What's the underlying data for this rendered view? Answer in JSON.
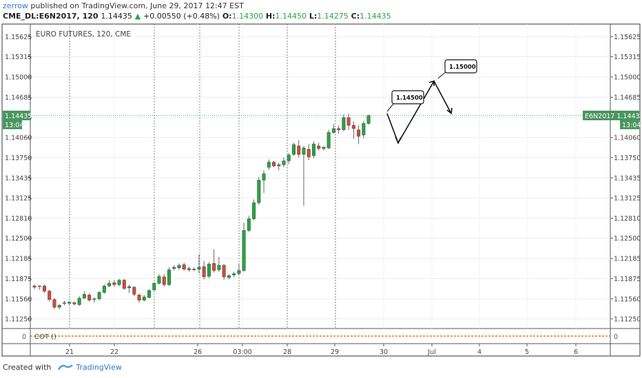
{
  "header": {
    "user": "zerrow",
    "published_text": "published on TradingView.com, June 29, 2017 12:47 EST",
    "symbol": "CME_DL:E6N2017, 120",
    "last": "1.14435",
    "change_arrow": "▲",
    "change": "+0.00550 (+0.48%)",
    "open_label": "O:",
    "open": "1.14300",
    "high_label": "H:",
    "high": "1.14450",
    "low_label": "L:",
    "low": "1.14275",
    "close_label": "C:",
    "close": "1.14435"
  },
  "chart": {
    "legend": "EURO FUTURES, 120, CME",
    "price_tag_left": "1.14435",
    "time_tag_left": "13:04",
    "price_tag_right": "E6N2017 1.14435",
    "time_tag_right": "13:04",
    "indicator_label": "COT ()",
    "indicator_value": "0"
  },
  "annotations": {
    "label1": "1.14500",
    "label2": "1.15000"
  },
  "footer": {
    "created_with": "Created with",
    "brand": "TradingView"
  },
  "colors": {
    "up": "#26a641",
    "down": "#d24b3c",
    "grid": "#e8e8e8",
    "tag": "#4a9660"
  },
  "chart_data": {
    "type": "candlestick",
    "title": "EURO FUTURES, 120, CME",
    "y_ticks": [
      "1.15625",
      "1.15315",
      "1.15000",
      "1.14685",
      "1.14370",
      "1.14060",
      "1.13750",
      "1.13435",
      "1.13125",
      "1.12810",
      "1.12500",
      "1.12185",
      "1.11875",
      "1.11560",
      "1.11250"
    ],
    "x_ticks": [
      "21",
      "22",
      "26",
      "03:00",
      "28",
      "29",
      "30",
      "Jul",
      "4",
      "5",
      "6"
    ],
    "ylim": [
      1.111,
      1.1582
    ],
    "candles": [
      {
        "o": 1.1176,
        "h": 1.1178,
        "l": 1.1171,
        "c": 1.1174
      },
      {
        "o": 1.1175,
        "h": 1.1177,
        "l": 1.117,
        "c": 1.1176
      },
      {
        "o": 1.1176,
        "h": 1.1178,
        "l": 1.1165,
        "c": 1.1168
      },
      {
        "o": 1.1168,
        "h": 1.117,
        "l": 1.1152,
        "c": 1.1155
      },
      {
        "o": 1.1155,
        "h": 1.1157,
        "l": 1.114,
        "c": 1.1143
      },
      {
        "o": 1.1143,
        "h": 1.1148,
        "l": 1.114,
        "c": 1.1146
      },
      {
        "o": 1.115,
        "h": 1.1153,
        "l": 1.1146,
        "c": 1.1149
      },
      {
        "o": 1.1149,
        "h": 1.1152,
        "l": 1.1147,
        "c": 1.1151
      },
      {
        "o": 1.115,
        "h": 1.1152,
        "l": 1.1146,
        "c": 1.1148
      },
      {
        "o": 1.1147,
        "h": 1.116,
        "l": 1.1145,
        "c": 1.1157
      },
      {
        "o": 1.1157,
        "h": 1.1168,
        "l": 1.1156,
        "c": 1.1163
      },
      {
        "o": 1.1162,
        "h": 1.1165,
        "l": 1.1152,
        "c": 1.1154
      },
      {
        "o": 1.1155,
        "h": 1.1158,
        "l": 1.115,
        "c": 1.1156
      },
      {
        "o": 1.1156,
        "h": 1.1168,
        "l": 1.1154,
        "c": 1.1166
      },
      {
        "o": 1.1166,
        "h": 1.1178,
        "l": 1.1164,
        "c": 1.1176
      },
      {
        "o": 1.1176,
        "h": 1.1185,
        "l": 1.1174,
        "c": 1.118
      },
      {
        "o": 1.1181,
        "h": 1.1185,
        "l": 1.1175,
        "c": 1.1178
      },
      {
        "o": 1.1178,
        "h": 1.1187,
        "l": 1.1176,
        "c": 1.1185
      },
      {
        "o": 1.1185,
        "h": 1.1187,
        "l": 1.117,
        "c": 1.1172
      },
      {
        "o": 1.1173,
        "h": 1.1178,
        "l": 1.1165,
        "c": 1.1175
      },
      {
        "o": 1.1174,
        "h": 1.1176,
        "l": 1.116,
        "c": 1.1163
      },
      {
        "o": 1.1162,
        "h": 1.1164,
        "l": 1.115,
        "c": 1.1154
      },
      {
        "o": 1.1154,
        "h": 1.1162,
        "l": 1.1152,
        "c": 1.1159
      },
      {
        "o": 1.1158,
        "h": 1.1171,
        "l": 1.1157,
        "c": 1.1169
      },
      {
        "o": 1.117,
        "h": 1.1182,
        "l": 1.1168,
        "c": 1.118
      },
      {
        "o": 1.118,
        "h": 1.1194,
        "l": 1.1178,
        "c": 1.1191
      },
      {
        "o": 1.119,
        "h": 1.1194,
        "l": 1.1175,
        "c": 1.1178
      },
      {
        "o": 1.1178,
        "h": 1.1205,
        "l": 1.1176,
        "c": 1.1201
      },
      {
        "o": 1.1203,
        "h": 1.1208,
        "l": 1.12,
        "c": 1.1205
      },
      {
        "o": 1.1204,
        "h": 1.1211,
        "l": 1.1201,
        "c": 1.1208
      },
      {
        "o": 1.1209,
        "h": 1.1212,
        "l": 1.12,
        "c": 1.1202
      },
      {
        "o": 1.1201,
        "h": 1.1206,
        "l": 1.1198,
        "c": 1.1203
      },
      {
        "o": 1.1202,
        "h": 1.1205,
        "l": 1.1199,
        "c": 1.1201
      },
      {
        "o": 1.1202,
        "h": 1.1225,
        "l": 1.1196,
        "c": 1.1205
      },
      {
        "o": 1.1206,
        "h": 1.1215,
        "l": 1.1186,
        "c": 1.119
      },
      {
        "o": 1.1191,
        "h": 1.1213,
        "l": 1.1188,
        "c": 1.121
      },
      {
        "o": 1.1211,
        "h": 1.1233,
        "l": 1.1197,
        "c": 1.12
      },
      {
        "o": 1.1201,
        "h": 1.1221,
        "l": 1.1198,
        "c": 1.1208
      },
      {
        "o": 1.1208,
        "h": 1.121,
        "l": 1.1186,
        "c": 1.119
      },
      {
        "o": 1.1189,
        "h": 1.1194,
        "l": 1.1186,
        "c": 1.1192
      },
      {
        "o": 1.1193,
        "h": 1.1198,
        "l": 1.119,
        "c": 1.1195
      },
      {
        "o": 1.1195,
        "h": 1.121,
        "l": 1.1193,
        "c": 1.12
      },
      {
        "o": 1.12,
        "h": 1.1274,
        "l": 1.1198,
        "c": 1.1262
      },
      {
        "o": 1.1262,
        "h": 1.1285,
        "l": 1.126,
        "c": 1.128
      },
      {
        "o": 1.128,
        "h": 1.131,
        "l": 1.1278,
        "c": 1.1305
      },
      {
        "o": 1.1305,
        "h": 1.1345,
        "l": 1.1302,
        "c": 1.134
      },
      {
        "o": 1.134,
        "h": 1.1355,
        "l": 1.132,
        "c": 1.135
      },
      {
        "o": 1.136,
        "h": 1.1372,
        "l": 1.1356,
        "c": 1.1368
      },
      {
        "o": 1.1368,
        "h": 1.137,
        "l": 1.136,
        "c": 1.1362
      },
      {
        "o": 1.1362,
        "h": 1.1367,
        "l": 1.1355,
        "c": 1.1364
      },
      {
        "o": 1.1364,
        "h": 1.1375,
        "l": 1.136,
        "c": 1.137
      },
      {
        "o": 1.137,
        "h": 1.1382,
        "l": 1.1365,
        "c": 1.1379
      },
      {
        "o": 1.138,
        "h": 1.1398,
        "l": 1.1378,
        "c": 1.1395
      },
      {
        "o": 1.1393,
        "h": 1.1402,
        "l": 1.1375,
        "c": 1.138
      },
      {
        "o": 1.138,
        "h": 1.1393,
        "l": 1.13,
        "c": 1.139
      },
      {
        "o": 1.1388,
        "h": 1.1396,
        "l": 1.1371,
        "c": 1.1376
      },
      {
        "o": 1.1378,
        "h": 1.14,
        "l": 1.1374,
        "c": 1.1396
      },
      {
        "o": 1.1393,
        "h": 1.1398,
        "l": 1.1386,
        "c": 1.1389
      },
      {
        "o": 1.1389,
        "h": 1.1393,
        "l": 1.1386,
        "c": 1.1391
      },
      {
        "o": 1.139,
        "h": 1.1418,
        "l": 1.1388,
        "c": 1.1414
      },
      {
        "o": 1.1414,
        "h": 1.1427,
        "l": 1.1412,
        "c": 1.142
      },
      {
        "o": 1.142,
        "h": 1.1425,
        "l": 1.1412,
        "c": 1.1418
      },
      {
        "o": 1.1418,
        "h": 1.1442,
        "l": 1.1416,
        "c": 1.1437
      },
      {
        "o": 1.1437,
        "h": 1.1443,
        "l": 1.1418,
        "c": 1.1425
      },
      {
        "o": 1.1425,
        "h": 1.1431,
        "l": 1.1404,
        "c": 1.142
      },
      {
        "o": 1.1418,
        "h": 1.1425,
        "l": 1.1396,
        "c": 1.1408
      },
      {
        "o": 1.141,
        "h": 1.1432,
        "l": 1.1405,
        "c": 1.1428
      },
      {
        "o": 1.1428,
        "h": 1.1442,
        "l": 1.1426,
        "c": 1.144
      }
    ],
    "projection_path": [
      {
        "x": "29 midday",
        "y": 1.145
      },
      {
        "x": "30",
        "y": 1.14
      },
      {
        "x": "Jul",
        "y": 1.15
      },
      {
        "x": "Jul +",
        "y": 1.145
      }
    ]
  }
}
